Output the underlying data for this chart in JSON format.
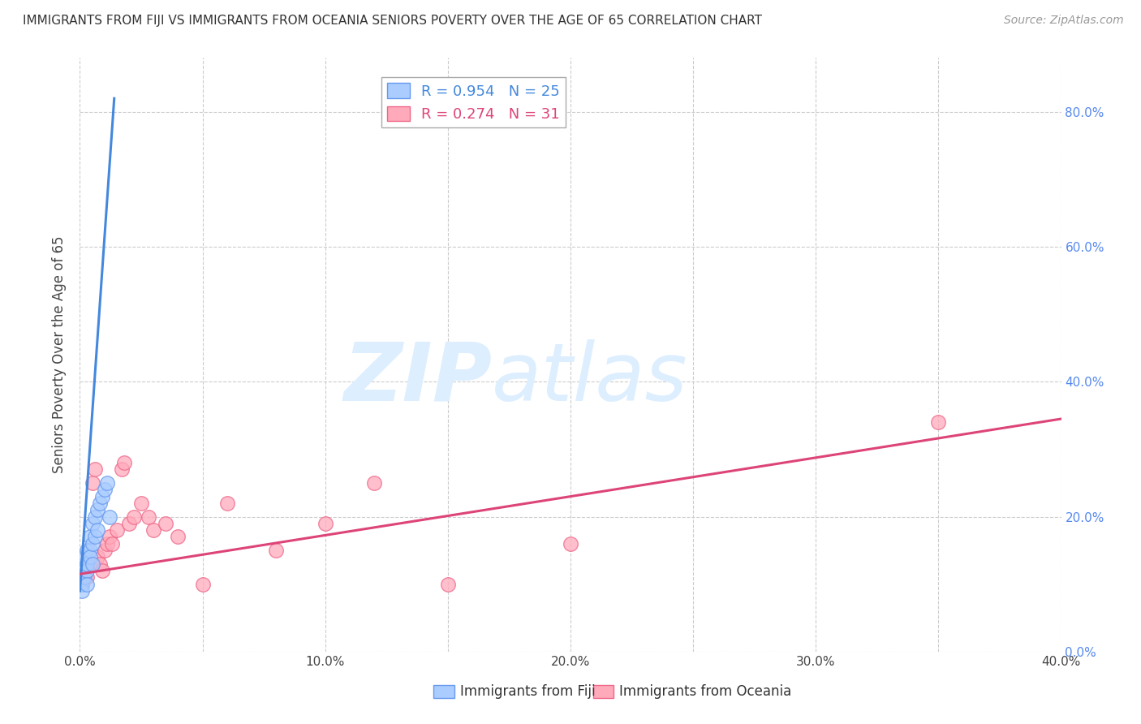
{
  "title": "IMMIGRANTS FROM FIJI VS IMMIGRANTS FROM OCEANIA SENIORS POVERTY OVER THE AGE OF 65 CORRELATION CHART",
  "source": "Source: ZipAtlas.com",
  "ylabel": "Seniors Poverty Over the Age of 65",
  "xlim": [
    0.0,
    0.4
  ],
  "ylim": [
    0.0,
    0.88
  ],
  "xticks": [
    0.0,
    0.05,
    0.1,
    0.15,
    0.2,
    0.25,
    0.3,
    0.35,
    0.4
  ],
  "xticklabels": [
    "0.0%",
    "",
    "10.0%",
    "",
    "20.0%",
    "",
    "30.0%",
    "",
    "40.0%"
  ],
  "yticks": [
    0.0,
    0.2,
    0.4,
    0.6,
    0.8
  ],
  "right_yticklabels": [
    "0.0%",
    "20.0%",
    "40.0%",
    "60.0%",
    "80.0%"
  ],
  "grid_color": "#cccccc",
  "background_color": "#ffffff",
  "fiji_color": "#aaccff",
  "fiji_edge_color": "#6699ee",
  "oceania_color": "#ffaabb",
  "oceania_edge_color": "#ee6688",
  "fiji_R": 0.954,
  "fiji_N": 25,
  "oceania_R": 0.274,
  "oceania_N": 31,
  "fiji_line_color": "#4488dd",
  "oceania_line_color": "#dd4477",
  "watermark_zip": "ZIP",
  "watermark_atlas": "atlas",
  "watermark_color": "#ddeeff",
  "fiji_label": "Immigrants from Fiji",
  "oceania_label": "Immigrants from Oceania",
  "fiji_points_x": [
    0.001,
    0.001,
    0.001,
    0.002,
    0.002,
    0.002,
    0.003,
    0.003,
    0.003,
    0.003,
    0.004,
    0.004,
    0.004,
    0.005,
    0.005,
    0.005,
    0.006,
    0.006,
    0.007,
    0.007,
    0.008,
    0.009,
    0.01,
    0.011,
    0.012
  ],
  "fiji_points_y": [
    0.1,
    0.12,
    0.09,
    0.13,
    0.11,
    0.14,
    0.12,
    0.15,
    0.1,
    0.13,
    0.15,
    0.17,
    0.14,
    0.16,
    0.19,
    0.13,
    0.17,
    0.2,
    0.18,
    0.21,
    0.22,
    0.23,
    0.24,
    0.25,
    0.2
  ],
  "oceania_points_x": [
    0.001,
    0.002,
    0.003,
    0.004,
    0.005,
    0.006,
    0.007,
    0.008,
    0.009,
    0.01,
    0.011,
    0.012,
    0.013,
    0.015,
    0.017,
    0.018,
    0.02,
    0.022,
    0.025,
    0.028,
    0.03,
    0.035,
    0.04,
    0.05,
    0.06,
    0.08,
    0.1,
    0.12,
    0.15,
    0.2,
    0.35
  ],
  "oceania_points_y": [
    0.1,
    0.12,
    0.11,
    0.13,
    0.25,
    0.27,
    0.14,
    0.13,
    0.12,
    0.15,
    0.16,
    0.17,
    0.16,
    0.18,
    0.27,
    0.28,
    0.19,
    0.2,
    0.22,
    0.2,
    0.18,
    0.19,
    0.17,
    0.1,
    0.22,
    0.15,
    0.19,
    0.25,
    0.1,
    0.16,
    0.34
  ],
  "fiji_trend_x": [
    0.0,
    0.014
  ],
  "fiji_trend_y": [
    0.09,
    0.82
  ],
  "oceania_trend_x": [
    0.0,
    0.4
  ],
  "oceania_trend_y": [
    0.115,
    0.345
  ]
}
